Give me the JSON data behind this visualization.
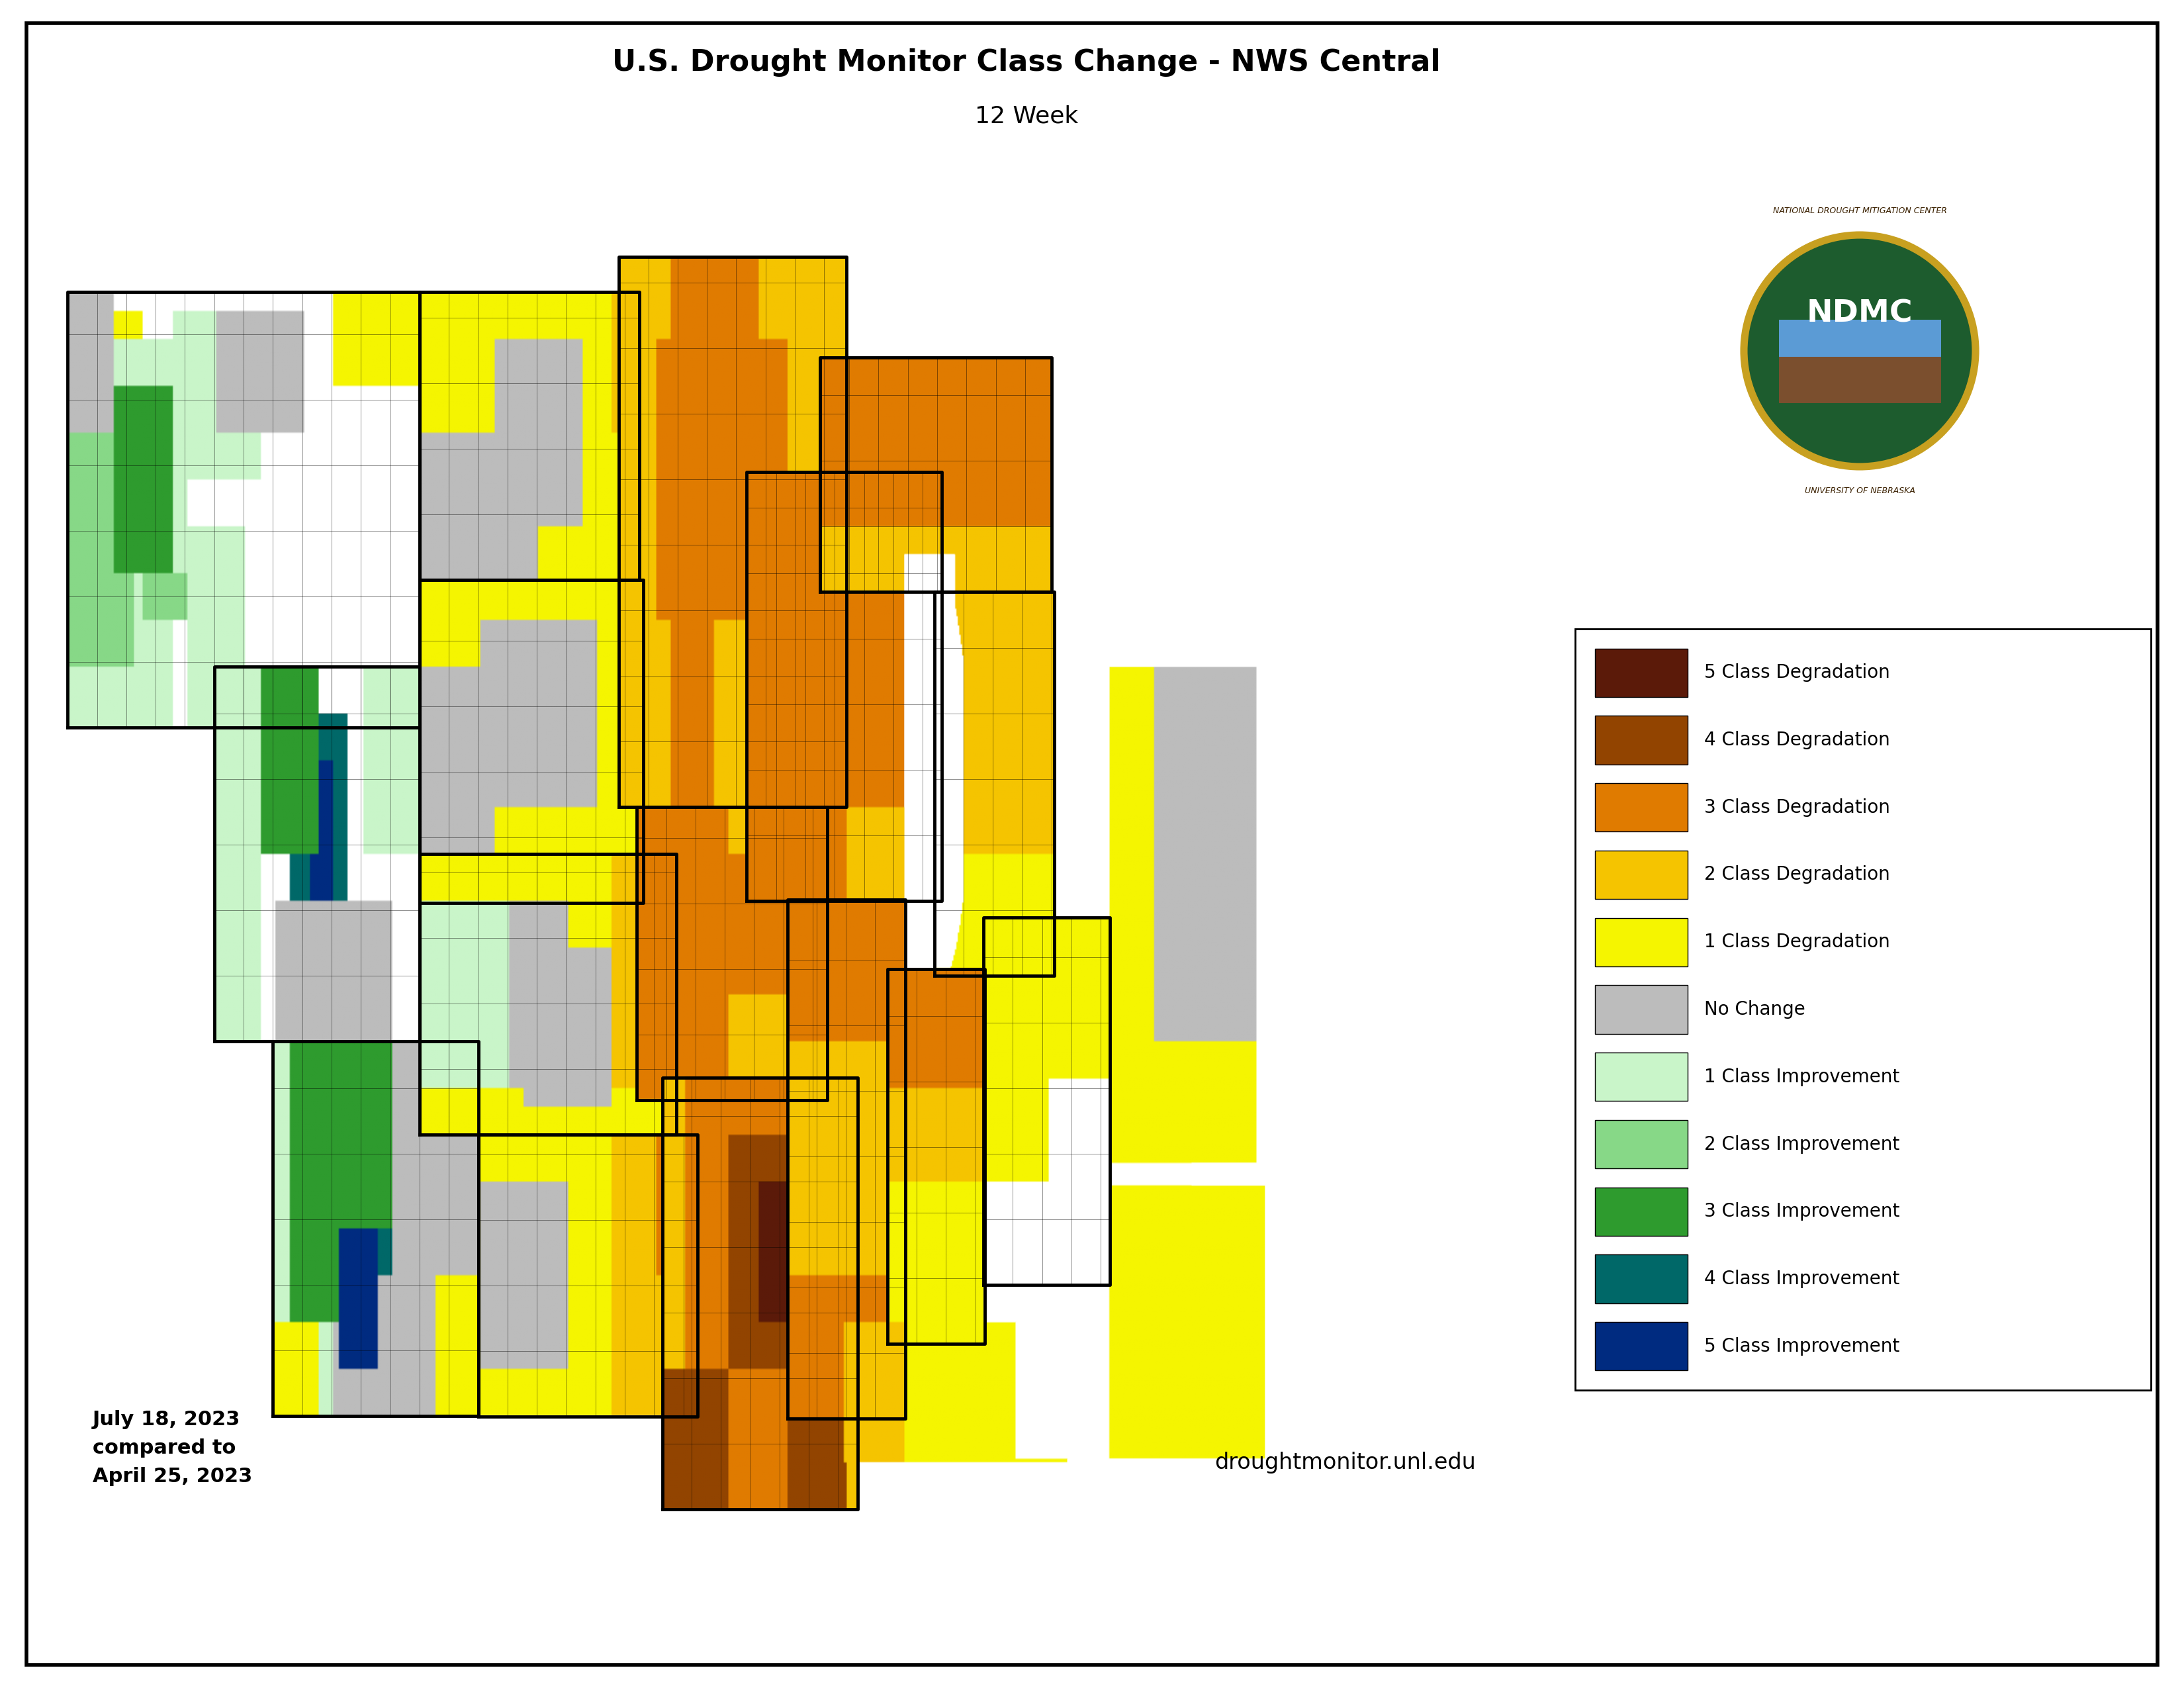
{
  "title_line1": "U.S. Drought Monitor Class Change - NWS Central",
  "title_line2": "12 Week",
  "date_text": "July 18, 2023\ncompared to\nApril 25, 2023",
  "website_text": "droughtmonitor.unl.edu",
  "legend_entries": [
    {
      "label": "5 Class Degradation",
      "color": "#5b1a09"
    },
    {
      "label": "4 Class Degradation",
      "color": "#924400"
    },
    {
      "label": "3 Class Degradation",
      "color": "#e07b00"
    },
    {
      "label": "2 Class Degradation",
      "color": "#f5c400"
    },
    {
      "label": "1 Class Degradation",
      "color": "#f5f500"
    },
    {
      "label": "No Change",
      "color": "#bcbcbc"
    },
    {
      "label": "1 Class Improvement",
      "color": "#c9f5c9"
    },
    {
      "label": "2 Class Improvement",
      "color": "#87d887"
    },
    {
      "label": "3 Class Improvement",
      "color": "#2e9b2e"
    },
    {
      "label": "4 Class Improvement",
      "color": "#006868"
    },
    {
      "label": "5 Class Improvement",
      "color": "#002b80"
    }
  ],
  "background_color": "#ffffff",
  "map_extent": [
    -116.1,
    -66.9,
    36.0,
    50.0
  ],
  "title_fontsize": 32,
  "subtitle_fontsize": 26,
  "legend_fontsize": 20,
  "date_fontsize": 22,
  "website_fontsize": 24
}
